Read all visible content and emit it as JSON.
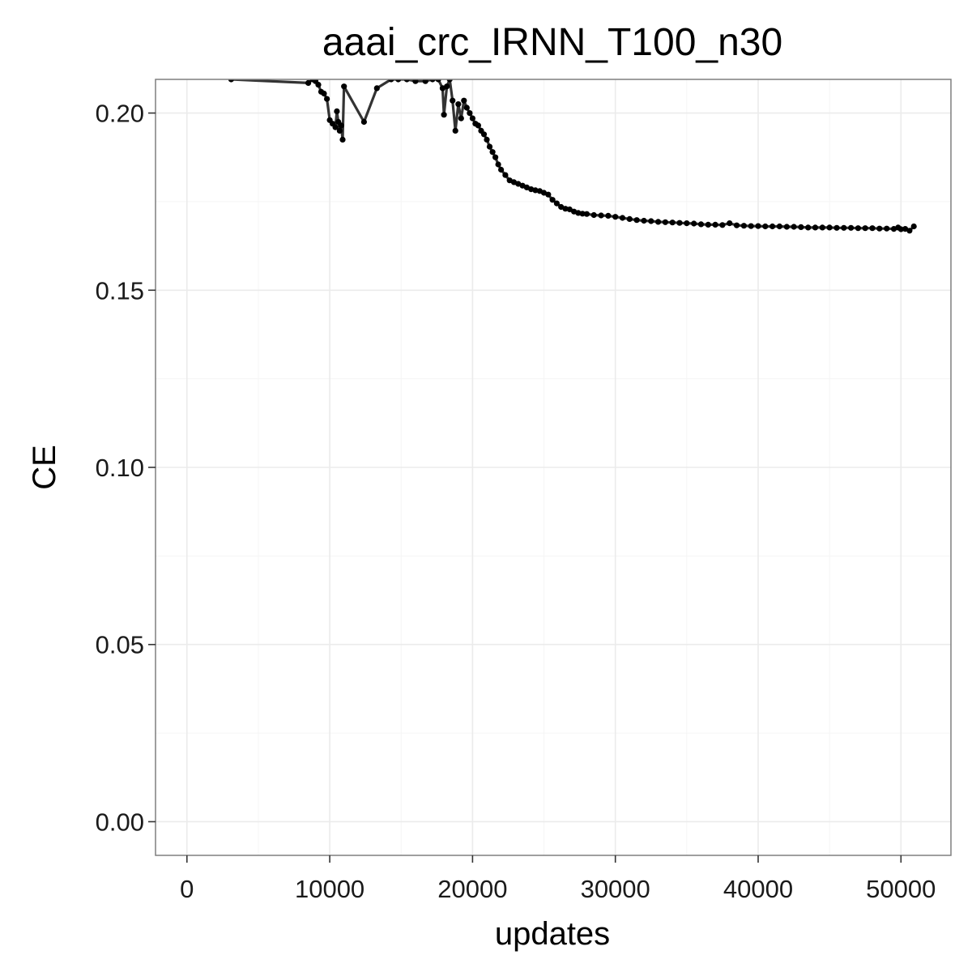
{
  "chart_data": {
    "type": "line",
    "title": "aaai_crc_IRNN_T100_n30",
    "xlabel": "updates",
    "ylabel": "CE",
    "xlim": [
      -2200,
      53500
    ],
    "ylim": [
      -0.0095,
      0.2095
    ],
    "x_ticks": [
      0,
      10000,
      20000,
      30000,
      40000,
      50000
    ],
    "x_tick_labels": [
      "0",
      "10000",
      "20000",
      "30000",
      "40000",
      "50000"
    ],
    "y_ticks": [
      0.0,
      0.05,
      0.1,
      0.15,
      0.2
    ],
    "y_tick_labels": [
      "0.00",
      "0.05",
      "0.10",
      "0.15",
      "0.20"
    ],
    "grid": true,
    "legend": "none",
    "colors": {
      "line": "#333333",
      "points": "#000000",
      "grid_major": "#ebebeb",
      "grid_minor": "#f5f5f5",
      "border": "#7f7f7f"
    },
    "series": [
      {
        "x": [
          3100,
          8500,
          8800,
          9000,
          9200,
          9400,
          9600,
          9800,
          10000,
          10200,
          10400,
          10500,
          10600,
          10700,
          10800,
          10900,
          11000,
          12400,
          13300,
          14300,
          14800,
          15400,
          16000,
          16700,
          17200,
          17600,
          17900,
          18000,
          18200,
          18400,
          18600,
          18800,
          19000,
          19200,
          19400,
          19600,
          19800,
          20000,
          20200,
          20400,
          20600,
          20800,
          21000,
          21200,
          21400,
          21600,
          21800,
          22000,
          22300,
          22600,
          22900,
          23200,
          23500,
          23800,
          24100,
          24400,
          24700,
          25000,
          25300,
          25600,
          25900,
          26200,
          26500,
          26800,
          27100,
          27400,
          27700,
          28000,
          28500,
          29000,
          29500,
          30000,
          30500,
          31000,
          31500,
          32000,
          32500,
          33000,
          33500,
          34000,
          34500,
          35000,
          35500,
          36000,
          36500,
          37000,
          37500,
          38000,
          38500,
          39000,
          39500,
          40000,
          40500,
          41000,
          41500,
          42000,
          42500,
          43000,
          43500,
          44000,
          44500,
          45000,
          45500,
          46000,
          46500,
          47000,
          47500,
          48000,
          48500,
          49000,
          49500,
          49800,
          50000,
          50300,
          50600,
          50900
        ],
        "y": [
          0.2095,
          0.2085,
          0.2095,
          0.209,
          0.208,
          0.206,
          0.2055,
          0.204,
          0.198,
          0.197,
          0.196,
          0.2005,
          0.1975,
          0.195,
          0.1965,
          0.1925,
          0.2075,
          0.1975,
          0.207,
          0.2095,
          0.2095,
          0.2095,
          0.209,
          0.209,
          0.2095,
          0.2095,
          0.207,
          0.1995,
          0.2075,
          0.2095,
          0.2035,
          0.195,
          0.2025,
          0.1985,
          0.2035,
          0.2015,
          0.2,
          0.1985,
          0.197,
          0.1965,
          0.195,
          0.194,
          0.1925,
          0.1905,
          0.189,
          0.1875,
          0.1855,
          0.184,
          0.1825,
          0.181,
          0.1805,
          0.18,
          0.1795,
          0.179,
          0.1785,
          0.1782,
          0.178,
          0.1775,
          0.177,
          0.1755,
          0.1745,
          0.1735,
          0.173,
          0.1728,
          0.1722,
          0.1718,
          0.1716,
          0.1715,
          0.1712,
          0.1711,
          0.171,
          0.1707,
          0.1704,
          0.1701,
          0.1698,
          0.1696,
          0.1695,
          0.1693,
          0.1692,
          0.1691,
          0.169,
          0.1689,
          0.1688,
          0.1686,
          0.1685,
          0.1685,
          0.1684,
          0.1689,
          0.1683,
          0.1682,
          0.1681,
          0.1681,
          0.168,
          0.168,
          0.168,
          0.1679,
          0.1679,
          0.1678,
          0.1677,
          0.1677,
          0.1677,
          0.1677,
          0.1676,
          0.1676,
          0.1676,
          0.1675,
          0.1675,
          0.1675,
          0.1674,
          0.1674,
          0.1673,
          0.1677,
          0.1672,
          0.1673,
          0.1668,
          0.168
        ]
      }
    ]
  }
}
